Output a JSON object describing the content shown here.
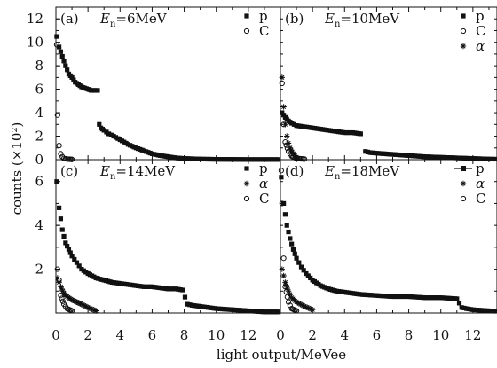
{
  "chart_data": {
    "type": "scatter",
    "xlabel": "light output/MeVee",
    "ylabel": "counts (×10²)",
    "panels": [
      {
        "tag": "(a)",
        "energy": {
          "symbol": "E",
          "sub": "n",
          "value": "=6MeV"
        },
        "xlim": [
          0,
          14
        ],
        "ylim": [
          0,
          13
        ],
        "yticks": [
          0,
          2,
          4,
          6,
          8,
          10,
          12
        ],
        "legend": [
          {
            "name": "p",
            "marker": "filled-square"
          },
          {
            "name": "C",
            "marker": "open-circle"
          }
        ],
        "series": [
          {
            "name": "p",
            "marker": "filled-square",
            "x": [
              0.05,
              0.2,
              0.4,
              0.6,
              0.8,
              1.0,
              1.2,
              1.4,
              1.6,
              1.8,
              2.0,
              2.2,
              2.4,
              2.6,
              2.7,
              2.8,
              3.0,
              3.3,
              3.6,
              4.0,
              4.5,
              5.0,
              5.5,
              6.0,
              6.5,
              7.0,
              7.5,
              8.0,
              9.0,
              10.0,
              11.0,
              12.0,
              13.0,
              14.0
            ],
            "y": [
              10.5,
              9.6,
              8.8,
              8.0,
              7.3,
              7.0,
              6.6,
              6.4,
              6.2,
              6.1,
              6.0,
              5.9,
              5.9,
              5.9,
              3.0,
              2.7,
              2.5,
              2.2,
              2.0,
              1.7,
              1.3,
              1.0,
              0.75,
              0.5,
              0.35,
              0.25,
              0.15,
              0.1,
              0.05,
              0.03,
              0.02,
              0.01,
              0.01,
              0.01
            ]
          },
          {
            "name": "C",
            "marker": "open-circle",
            "x": [
              0.05,
              0.1,
              0.2,
              0.3,
              0.4,
              0.5,
              0.7,
              1.0
            ],
            "y": [
              9.8,
              3.8,
              1.2,
              0.5,
              0.25,
              0.1,
              0.05,
              0.02
            ]
          }
        ]
      },
      {
        "tag": "(b)",
        "energy": {
          "symbol": "E",
          "sub": "n",
          "value": "=10MeV"
        },
        "xlim": [
          0,
          14
        ],
        "ylim": [
          0,
          13
        ],
        "yticks": [
          0,
          2,
          4,
          6,
          8,
          10,
          12
        ],
        "legend": [
          {
            "name": "p",
            "marker": "filled-square"
          },
          {
            "name": "C",
            "marker": "open-circle"
          },
          {
            "name": "α",
            "marker": "asterisk"
          }
        ],
        "series": [
          {
            "name": "p",
            "marker": "filled-square",
            "x": [
              0.1,
              0.3,
              0.5,
              0.7,
              1.0,
              1.5,
              2.0,
              2.5,
              3.0,
              3.5,
              4.0,
              4.5,
              5.0,
              5.3,
              5.6,
              6.0,
              7.0,
              8.0,
              9.0,
              10.0,
              11.0,
              12.0,
              13.0,
              14.0
            ],
            "y": [
              4.0,
              3.6,
              3.3,
              3.1,
              2.9,
              2.8,
              2.7,
              2.6,
              2.5,
              2.4,
              2.3,
              2.3,
              2.2,
              0.7,
              0.6,
              0.55,
              0.45,
              0.35,
              0.25,
              0.2,
              0.15,
              0.1,
              0.05,
              0.03
            ]
          },
          {
            "name": "C",
            "marker": "open-circle",
            "x": [
              0.1,
              0.2,
              0.3,
              0.5,
              0.7,
              1.0,
              1.5
            ],
            "y": [
              6.5,
              3.0,
              1.5,
              0.7,
              0.3,
              0.1,
              0.05
            ]
          },
          {
            "name": "α",
            "marker": "asterisk",
            "x": [
              0.1,
              0.2,
              0.3,
              0.4,
              0.5,
              0.6,
              0.8,
              1.0
            ],
            "y": [
              7.0,
              4.5,
              3.0,
              2.0,
              1.4,
              1.0,
              0.5,
              0.2
            ]
          }
        ]
      },
      {
        "tag": "(c)",
        "energy": {
          "symbol": "E",
          "sub": "n",
          "value": "=14MeV"
        },
        "xlim": [
          0,
          14
        ],
        "ylim": [
          0,
          7
        ],
        "yticks": [
          2,
          4,
          6
        ],
        "legend": [
          {
            "name": "p",
            "marker": "filled-square"
          },
          {
            "name": "α",
            "marker": "asterisk"
          },
          {
            "name": "C",
            "marker": "open-circle"
          }
        ],
        "series": [
          {
            "name": "p",
            "marker": "filled-square",
            "x": [
              0.05,
              0.2,
              0.4,
              0.6,
              0.8,
              1.0,
              1.3,
              1.6,
              2.0,
              2.5,
              3.0,
              3.5,
              4.0,
              4.5,
              5.0,
              5.5,
              6.0,
              6.5,
              7.0,
              7.5,
              7.9,
              8.2,
              8.5,
              9.0,
              9.5,
              10.0,
              11.0,
              12.0,
              13.0,
              14.0
            ],
            "y": [
              6.0,
              4.8,
              3.8,
              3.2,
              2.9,
              2.6,
              2.3,
              2.0,
              1.8,
              1.6,
              1.5,
              1.4,
              1.35,
              1.3,
              1.25,
              1.2,
              1.2,
              1.15,
              1.1,
              1.1,
              1.05,
              0.4,
              0.35,
              0.3,
              0.25,
              0.2,
              0.15,
              0.1,
              0.05,
              0.05
            ]
          },
          {
            "name": "α",
            "marker": "asterisk",
            "x": [
              0.1,
              0.3,
              0.5,
              0.7,
              1.0,
              1.3,
              1.6,
              2.0,
              2.5
            ],
            "y": [
              1.6,
              1.2,
              0.9,
              0.75,
              0.6,
              0.5,
              0.4,
              0.25,
              0.1
            ]
          },
          {
            "name": "C",
            "marker": "open-circle",
            "x": [
              0.1,
              0.2,
              0.3,
              0.5,
              0.7,
              1.0
            ],
            "y": [
              2.0,
              1.5,
              0.8,
              0.4,
              0.2,
              0.1
            ]
          }
        ]
      },
      {
        "tag": "(d)",
        "energy": {
          "symbol": "E",
          "sub": "n",
          "value": "=18MeV"
        },
        "xlim": [
          0,
          14
        ],
        "ylim": [
          0,
          7
        ],
        "yticks": [],
        "legend": [
          {
            "name": "p",
            "marker": "line-square"
          },
          {
            "name": "α",
            "marker": "asterisk"
          },
          {
            "name": "C",
            "marker": "open-circle"
          }
        ],
        "series": [
          {
            "name": "p",
            "marker": "filled-square",
            "x": [
              0.05,
              0.2,
              0.4,
              0.6,
              0.8,
              1.0,
              1.3,
              1.6,
              2.0,
              2.5,
              3.0,
              3.5,
              4.0,
              5.0,
              6.0,
              7.0,
              8.0,
              9.0,
              10.0,
              11.0,
              11.3,
              11.6,
              12.0,
              13.0,
              14.0
            ],
            "y": [
              6.2,
              5.0,
              4.0,
              3.4,
              2.9,
              2.5,
              2.1,
              1.8,
              1.5,
              1.25,
              1.1,
              1.0,
              0.95,
              0.85,
              0.8,
              0.75,
              0.75,
              0.7,
              0.7,
              0.65,
              0.25,
              0.2,
              0.15,
              0.1,
              0.05
            ]
          },
          {
            "name": "α",
            "marker": "asterisk",
            "x": [
              0.1,
              0.3,
              0.5,
              0.7,
              1.0,
              1.5,
              2.0
            ],
            "y": [
              2.0,
              1.4,
              1.0,
              0.7,
              0.5,
              0.3,
              0.15
            ]
          },
          {
            "name": "C",
            "marker": "open-circle",
            "x": [
              0.05,
              0.1,
              0.2,
              0.3,
              0.5,
              0.7,
              1.0
            ],
            "y": [
              6.5,
              5.0,
              2.5,
              1.2,
              0.5,
              0.2,
              0.1
            ]
          }
        ]
      }
    ],
    "xticks_bottom_left": [
      0,
      2,
      4,
      6,
      8,
      10,
      12
    ],
    "xticks_bottom_right": [
      0,
      2,
      4,
      6,
      8,
      10,
      12
    ]
  }
}
